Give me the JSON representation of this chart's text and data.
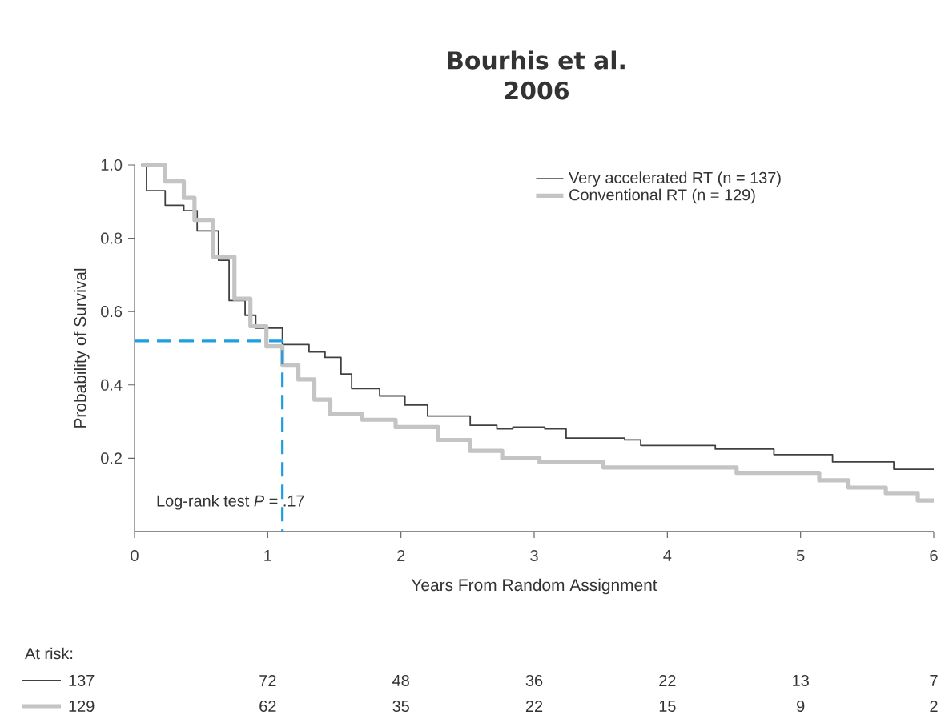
{
  "chart_data": {
    "type": "step",
    "title": "Bourhis et al.\n2006",
    "xlabel": "Years From Random Assignment",
    "ylabel": "Probability of Survival",
    "xlim": [
      0,
      6
    ],
    "xticks": [
      0,
      1,
      2,
      3,
      4,
      5,
      6
    ],
    "ylim": [
      0,
      1
    ],
    "yticks": [
      {
        "value": 0.2,
        "label": "0.2"
      },
      {
        "value": 0.4,
        "label": "0.4"
      },
      {
        "value": 0.6,
        "label": "0.6"
      },
      {
        "value": 0.8,
        "label": "0.8"
      },
      {
        "value": 1,
        "label": "1.0"
      }
    ],
    "legend": "top right",
    "series": [
      {
        "name": "Very accelerated RT (n = 137)",
        "color": "#404040",
        "x": [
          0.05,
          0.09,
          0.23,
          0.37,
          0.47,
          0.63,
          0.71,
          0.83,
          0.91,
          1.11,
          1.31,
          1.43,
          1.55,
          1.63,
          1.84,
          2.03,
          2.2,
          2.52,
          2.72,
          2.84,
          3.08,
          3.24,
          3.68,
          3.8,
          4.36,
          4.8,
          5.24,
          5.7,
          6.0
        ],
        "values": [
          1.0,
          0.93,
          0.89,
          0.875,
          0.82,
          0.74,
          0.63,
          0.59,
          0.555,
          0.51,
          0.49,
          0.475,
          0.43,
          0.39,
          0.37,
          0.345,
          0.315,
          0.29,
          0.28,
          0.285,
          0.28,
          0.255,
          0.25,
          0.235,
          0.225,
          0.21,
          0.19,
          0.17,
          0.17
        ]
      },
      {
        "name": "Conventional RT (n = 129)",
        "color": "#c4c4c4",
        "x": [
          0.05,
          0.23,
          0.37,
          0.45,
          0.59,
          0.75,
          0.87,
          0.99,
          1.11,
          1.23,
          1.35,
          1.47,
          1.71,
          1.96,
          2.28,
          2.52,
          2.76,
          3.04,
          3.52,
          4.52,
          5.14,
          5.36,
          5.64,
          5.88,
          6.0
        ],
        "values": [
          1.0,
          0.955,
          0.91,
          0.85,
          0.75,
          0.635,
          0.56,
          0.505,
          0.455,
          0.415,
          0.36,
          0.32,
          0.305,
          0.285,
          0.25,
          0.22,
          0.2,
          0.19,
          0.175,
          0.16,
          0.14,
          0.12,
          0.105,
          0.085,
          0.085
        ]
      },
      {
        "type": "line",
        "line_style": "dashed",
        "color": "#1ea0e0",
        "x": [
          0,
          1.11,
          1.11
        ],
        "values": [
          0.52,
          0.52,
          0
        ]
      }
    ],
    "annotations": [
      "Log-rank test *P* = .17",
      "At risk:",
      "137",
      "72",
      "48",
      "36",
      "22",
      "13",
      "7",
      "129",
      "62",
      "35",
      "22",
      "15",
      "9",
      "2"
    ]
  }
}
